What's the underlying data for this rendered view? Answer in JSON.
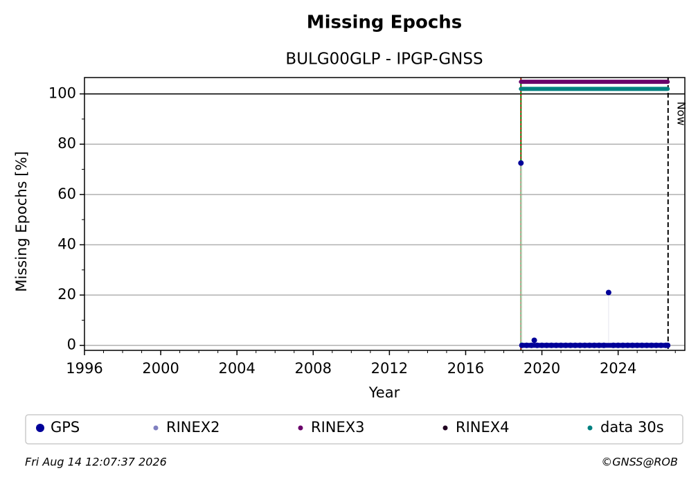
{
  "chart_data": {
    "type": "scatter",
    "title": "Missing Epochs",
    "subtitle": "BULG00GLP - IPGP-GNSS",
    "xlabel": "Year",
    "ylabel": "Missing Epochs [%]",
    "xlim": [
      1996,
      2027.5
    ],
    "xticks": [
      1996,
      2000,
      2004,
      2008,
      2012,
      2016,
      2020,
      2024
    ],
    "ylim": [
      -2,
      106.5
    ],
    "yticks": [
      0,
      20,
      40,
      60,
      80,
      100
    ],
    "grid": true,
    "reference_y": 100,
    "start_x": 2018.9,
    "now": {
      "x": 2026.62,
      "label": "Now"
    },
    "series": [
      {
        "name": "GPS",
        "color": "#000099",
        "style": "dots",
        "x": [
          2018.9,
          2018.95,
          2019.2,
          2019.45,
          2019.6,
          2019.75,
          2020.0,
          2020.25,
          2020.5,
          2020.75,
          2021.0,
          2021.25,
          2021.5,
          2021.75,
          2022.0,
          2022.25,
          2022.5,
          2022.75,
          2023.0,
          2023.25,
          2023.5,
          2023.75,
          2024.0,
          2024.25,
          2024.5,
          2024.75,
          2025.0,
          2025.25,
          2025.5,
          2025.75,
          2026.0,
          2026.25,
          2026.5,
          2026.6
        ],
        "values": [
          72.5,
          0,
          0,
          0,
          2,
          0,
          0,
          0,
          0,
          0,
          0,
          0,
          0,
          0,
          0,
          0,
          0,
          0,
          0,
          0,
          21,
          0,
          0,
          0,
          0,
          0,
          0,
          0,
          0,
          0,
          0,
          0,
          0,
          0
        ]
      },
      {
        "name": "RINEX2",
        "color": "#8080c0",
        "style": "dots",
        "x": [],
        "values": []
      },
      {
        "name": "RINEX3",
        "color": "#6a006a",
        "style": "band",
        "x": [
          2018.9,
          2026.6
        ],
        "values": [
          104.8,
          104.8
        ]
      },
      {
        "name": "RINEX4",
        "color": "#200020",
        "style": "dots",
        "x": [],
        "values": []
      },
      {
        "name": "data 30s",
        "color": "#008080",
        "style": "band",
        "x": [
          2018.9,
          2026.6
        ],
        "values": [
          102,
          102
        ]
      }
    ],
    "footer_left": "Fri Aug 14 12:07:37 2026",
    "footer_right": "©GNSS@ROB"
  }
}
